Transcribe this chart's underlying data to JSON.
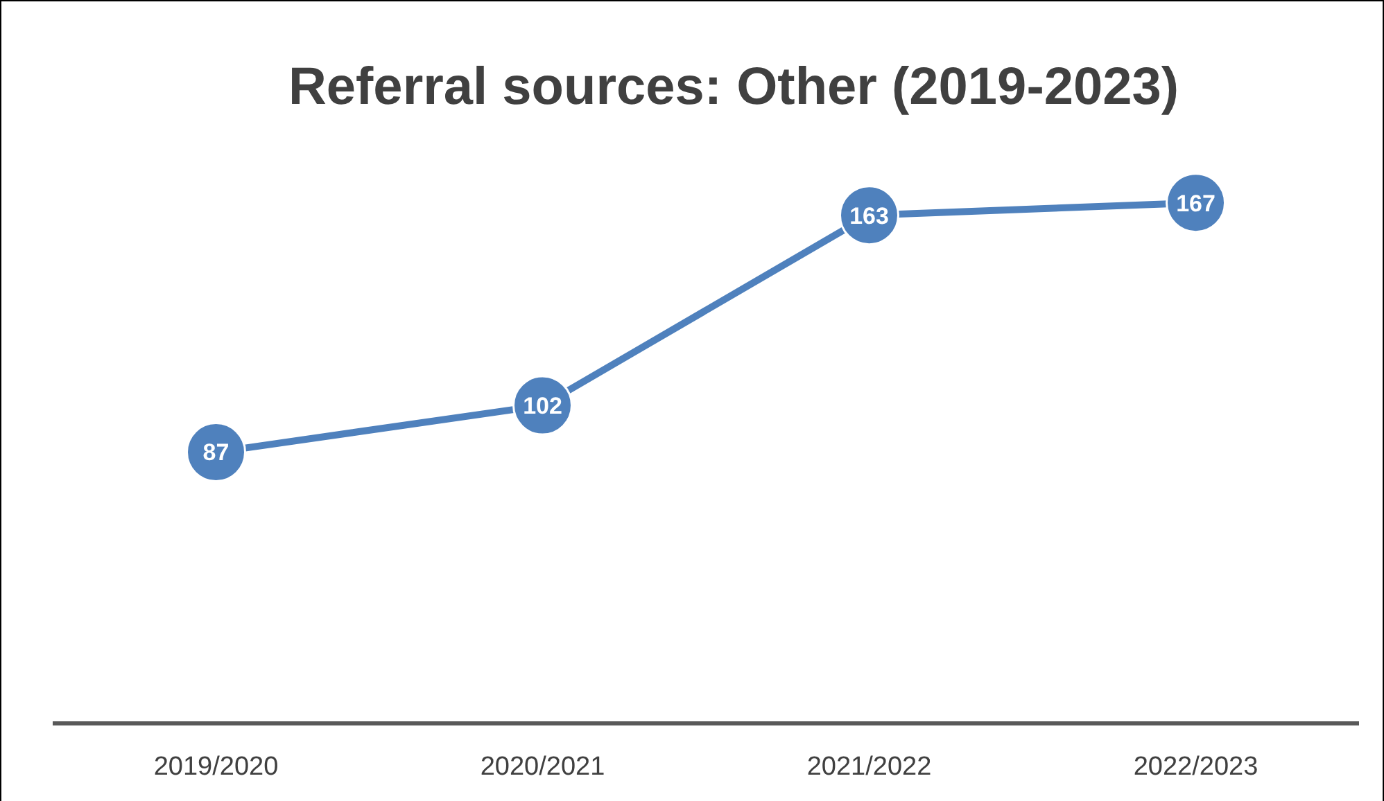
{
  "chart_data": {
    "type": "line",
    "title": "Referral sources: Other (2019-2023)",
    "categories": [
      "2019/2020",
      "2020/2021",
      "2021/2022",
      "2022/2023"
    ],
    "series": [
      {
        "color": "#4f81bd",
        "values": [
          87,
          102,
          163,
          167
        ]
      }
    ],
    "data_labels": true,
    "marker": "circle"
  }
}
